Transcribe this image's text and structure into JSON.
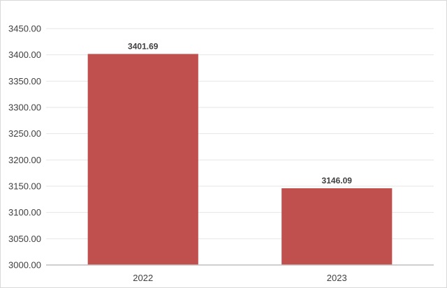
{
  "chart_data": {
    "type": "bar",
    "title": "",
    "xlabel": "",
    "ylabel": "",
    "categories": [
      "2022",
      "2023"
    ],
    "values": [
      3401.69,
      3146.09
    ],
    "data_labels": [
      "3401.69",
      "3146.09"
    ],
    "ylim": [
      3000,
      3450
    ],
    "y_ticks": [
      3000,
      3050,
      3100,
      3150,
      3200,
      3250,
      3300,
      3350,
      3400,
      3450
    ],
    "y_tick_labels": [
      "3000.00",
      "3050.00",
      "3100.00",
      "3150.00",
      "3200.00",
      "3250.00",
      "3300.00",
      "3350.00",
      "3400.00",
      "3450.00"
    ],
    "grid": true,
    "legend": "none",
    "colors": {
      "bar": "#c0504d",
      "grid": "#e6e6e6",
      "axis": "#bfbfbf",
      "text": "#404040"
    }
  }
}
